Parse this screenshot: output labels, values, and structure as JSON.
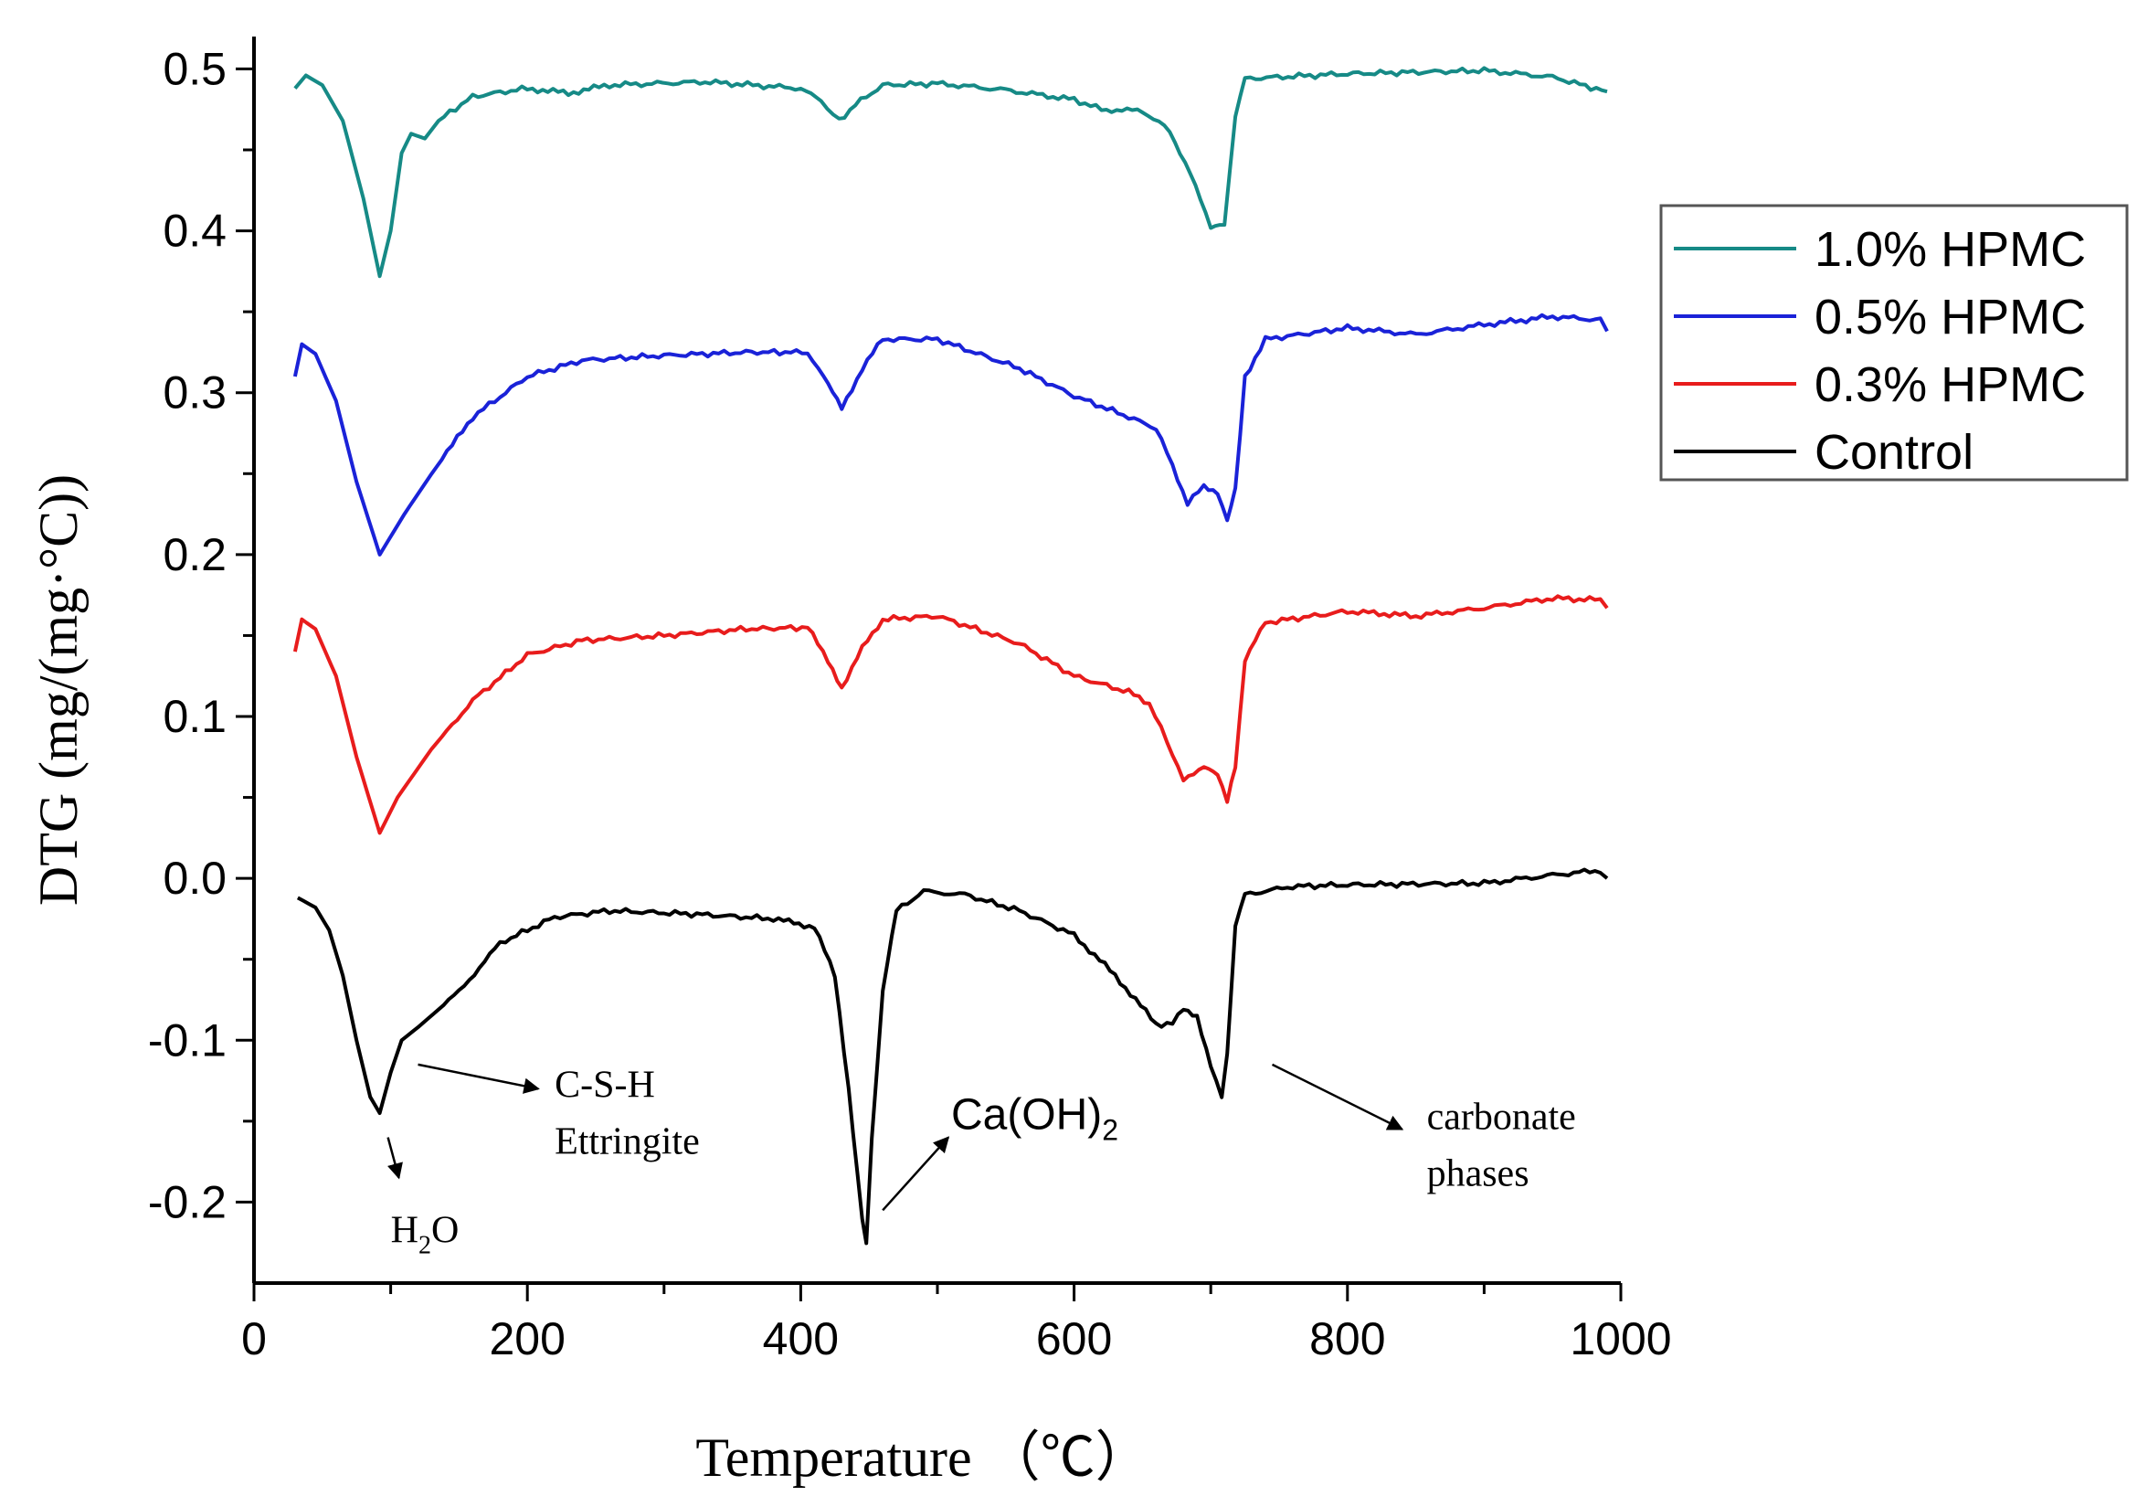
{
  "chart_data": {
    "type": "line",
    "xlabel": "Temperature （℃）",
    "ylabel": "DTG (mg/(mg·°C))",
    "xlim": [
      0,
      1000
    ],
    "ylim": [
      -0.25,
      0.52
    ],
    "xticks": [
      0,
      200,
      400,
      600,
      800,
      1000
    ],
    "xtick_labels": [
      "0",
      "200",
      "400",
      "600",
      "800",
      "1000"
    ],
    "yticks": [
      0.5,
      0.4,
      0.3,
      0.2,
      0.1,
      0.0,
      -0.1,
      -0.2
    ],
    "ytick_labels": [
      "0.5",
      "0.4",
      "0.3",
      "0.2",
      "0.1",
      "0.0",
      "-0.1",
      "-0.2"
    ],
    "legend_position": "right",
    "series": [
      {
        "name": "1.0% HPMC",
        "color": "#168a86",
        "points": [
          [
            30,
            0.488
          ],
          [
            38,
            0.496
          ],
          [
            50,
            0.49
          ],
          [
            65,
            0.468
          ],
          [
            80,
            0.42
          ],
          [
            92,
            0.372
          ],
          [
            100,
            0.4
          ],
          [
            108,
            0.448
          ],
          [
            115,
            0.46
          ],
          [
            125,
            0.457
          ],
          [
            135,
            0.468
          ],
          [
            160,
            0.483
          ],
          [
            200,
            0.488
          ],
          [
            230,
            0.485
          ],
          [
            260,
            0.49
          ],
          [
            330,
            0.492
          ],
          [
            400,
            0.488
          ],
          [
            415,
            0.48
          ],
          [
            428,
            0.468
          ],
          [
            440,
            0.478
          ],
          [
            460,
            0.49
          ],
          [
            500,
            0.491
          ],
          [
            550,
            0.487
          ],
          [
            600,
            0.481
          ],
          [
            620,
            0.475
          ],
          [
            650,
            0.474
          ],
          [
            670,
            0.462
          ],
          [
            685,
            0.435
          ],
          [
            700,
            0.403
          ],
          [
            710,
            0.405
          ],
          [
            718,
            0.47
          ],
          [
            725,
            0.494
          ],
          [
            800,
            0.497
          ],
          [
            900,
            0.499
          ],
          [
            950,
            0.495
          ],
          [
            990,
            0.486
          ]
        ]
      },
      {
        "name": "0.5% HPMC",
        "color": "#1a22d8",
        "points": [
          [
            30,
            0.31
          ],
          [
            35,
            0.33
          ],
          [
            45,
            0.324
          ],
          [
            60,
            0.295
          ],
          [
            75,
            0.245
          ],
          [
            92,
            0.2
          ],
          [
            110,
            0.225
          ],
          [
            130,
            0.25
          ],
          [
            160,
            0.285
          ],
          [
            200,
            0.31
          ],
          [
            240,
            0.32
          ],
          [
            300,
            0.323
          ],
          [
            360,
            0.325
          ],
          [
            405,
            0.325
          ],
          [
            420,
            0.305
          ],
          [
            430,
            0.29
          ],
          [
            445,
            0.315
          ],
          [
            460,
            0.333
          ],
          [
            500,
            0.333
          ],
          [
            560,
            0.315
          ],
          [
            600,
            0.298
          ],
          [
            640,
            0.285
          ],
          [
            660,
            0.278
          ],
          [
            672,
            0.255
          ],
          [
            683,
            0.232
          ],
          [
            695,
            0.242
          ],
          [
            705,
            0.238
          ],
          [
            712,
            0.222
          ],
          [
            718,
            0.24
          ],
          [
            725,
            0.31
          ],
          [
            740,
            0.333
          ],
          [
            800,
            0.34
          ],
          [
            850,
            0.336
          ],
          [
            900,
            0.342
          ],
          [
            950,
            0.347
          ],
          [
            985,
            0.345
          ],
          [
            990,
            0.338
          ]
        ]
      },
      {
        "name": "0.3% HPMC",
        "color": "#e81c1c",
        "points": [
          [
            30,
            0.14
          ],
          [
            35,
            0.16
          ],
          [
            45,
            0.154
          ],
          [
            60,
            0.125
          ],
          [
            75,
            0.075
          ],
          [
            92,
            0.028
          ],
          [
            105,
            0.05
          ],
          [
            130,
            0.08
          ],
          [
            160,
            0.11
          ],
          [
            200,
            0.138
          ],
          [
            240,
            0.147
          ],
          [
            300,
            0.15
          ],
          [
            360,
            0.154
          ],
          [
            405,
            0.155
          ],
          [
            420,
            0.135
          ],
          [
            430,
            0.118
          ],
          [
            445,
            0.142
          ],
          [
            460,
            0.16
          ],
          [
            500,
            0.162
          ],
          [
            560,
            0.145
          ],
          [
            600,
            0.125
          ],
          [
            640,
            0.115
          ],
          [
            655,
            0.108
          ],
          [
            668,
            0.085
          ],
          [
            680,
            0.06
          ],
          [
            695,
            0.07
          ],
          [
            705,
            0.065
          ],
          [
            712,
            0.048
          ],
          [
            718,
            0.07
          ],
          [
            725,
            0.135
          ],
          [
            740,
            0.158
          ],
          [
            800,
            0.165
          ],
          [
            850,
            0.162
          ],
          [
            900,
            0.167
          ],
          [
            950,
            0.173
          ],
          [
            985,
            0.172
          ],
          [
            990,
            0.167
          ]
        ]
      },
      {
        "name": "Control",
        "color": "#000000",
        "points": [
          [
            32,
            -0.012
          ],
          [
            45,
            -0.018
          ],
          [
            55,
            -0.032
          ],
          [
            65,
            -0.06
          ],
          [
            75,
            -0.1
          ],
          [
            85,
            -0.135
          ],
          [
            92,
            -0.145
          ],
          [
            100,
            -0.12
          ],
          [
            108,
            -0.1
          ],
          [
            120,
            -0.092
          ],
          [
            150,
            -0.07
          ],
          [
            180,
            -0.04
          ],
          [
            220,
            -0.024
          ],
          [
            260,
            -0.02
          ],
          [
            320,
            -0.022
          ],
          [
            380,
            -0.025
          ],
          [
            410,
            -0.03
          ],
          [
            425,
            -0.06
          ],
          [
            435,
            -0.13
          ],
          [
            445,
            -0.21
          ],
          [
            448,
            -0.225
          ],
          [
            452,
            -0.16
          ],
          [
            460,
            -0.07
          ],
          [
            470,
            -0.02
          ],
          [
            490,
            -0.008
          ],
          [
            520,
            -0.01
          ],
          [
            560,
            -0.02
          ],
          [
            600,
            -0.035
          ],
          [
            630,
            -0.06
          ],
          [
            660,
            -0.09
          ],
          [
            672,
            -0.09
          ],
          [
            680,
            -0.08
          ],
          [
            690,
            -0.085
          ],
          [
            700,
            -0.115
          ],
          [
            708,
            -0.135
          ],
          [
            712,
            -0.11
          ],
          [
            718,
            -0.03
          ],
          [
            725,
            -0.01
          ],
          [
            760,
            -0.005
          ],
          [
            800,
            -0.004
          ],
          [
            900,
            -0.003
          ],
          [
            950,
            0.002
          ],
          [
            985,
            0.005
          ],
          [
            990,
            0.0
          ]
        ]
      }
    ],
    "annotations": [
      {
        "text": "C-S-H",
        "x": 220,
        "y": -0.135
      },
      {
        "text": "Ettringite",
        "x": 220,
        "y": -0.17
      },
      {
        "text": "H",
        "sub": "2",
        "after": "O",
        "x": 100,
        "y": -0.225
      },
      {
        "text": "Ca(OH)",
        "sub": "2",
        "x": 510,
        "y": -0.155
      },
      {
        "text": "carbonate",
        "x": 858,
        "y": -0.155
      },
      {
        "text": "phases",
        "x": 858,
        "y": -0.19
      }
    ],
    "arrows": [
      {
        "from": [
          120,
          -0.115
        ],
        "to": [
          208,
          -0.13
        ]
      },
      {
        "from": [
          98,
          -0.16
        ],
        "to": [
          106,
          -0.185
        ]
      },
      {
        "from": [
          460,
          -0.205
        ],
        "to": [
          508,
          -0.16
        ]
      },
      {
        "from": [
          745,
          -0.115
        ],
        "to": [
          840,
          -0.155
        ]
      }
    ]
  }
}
